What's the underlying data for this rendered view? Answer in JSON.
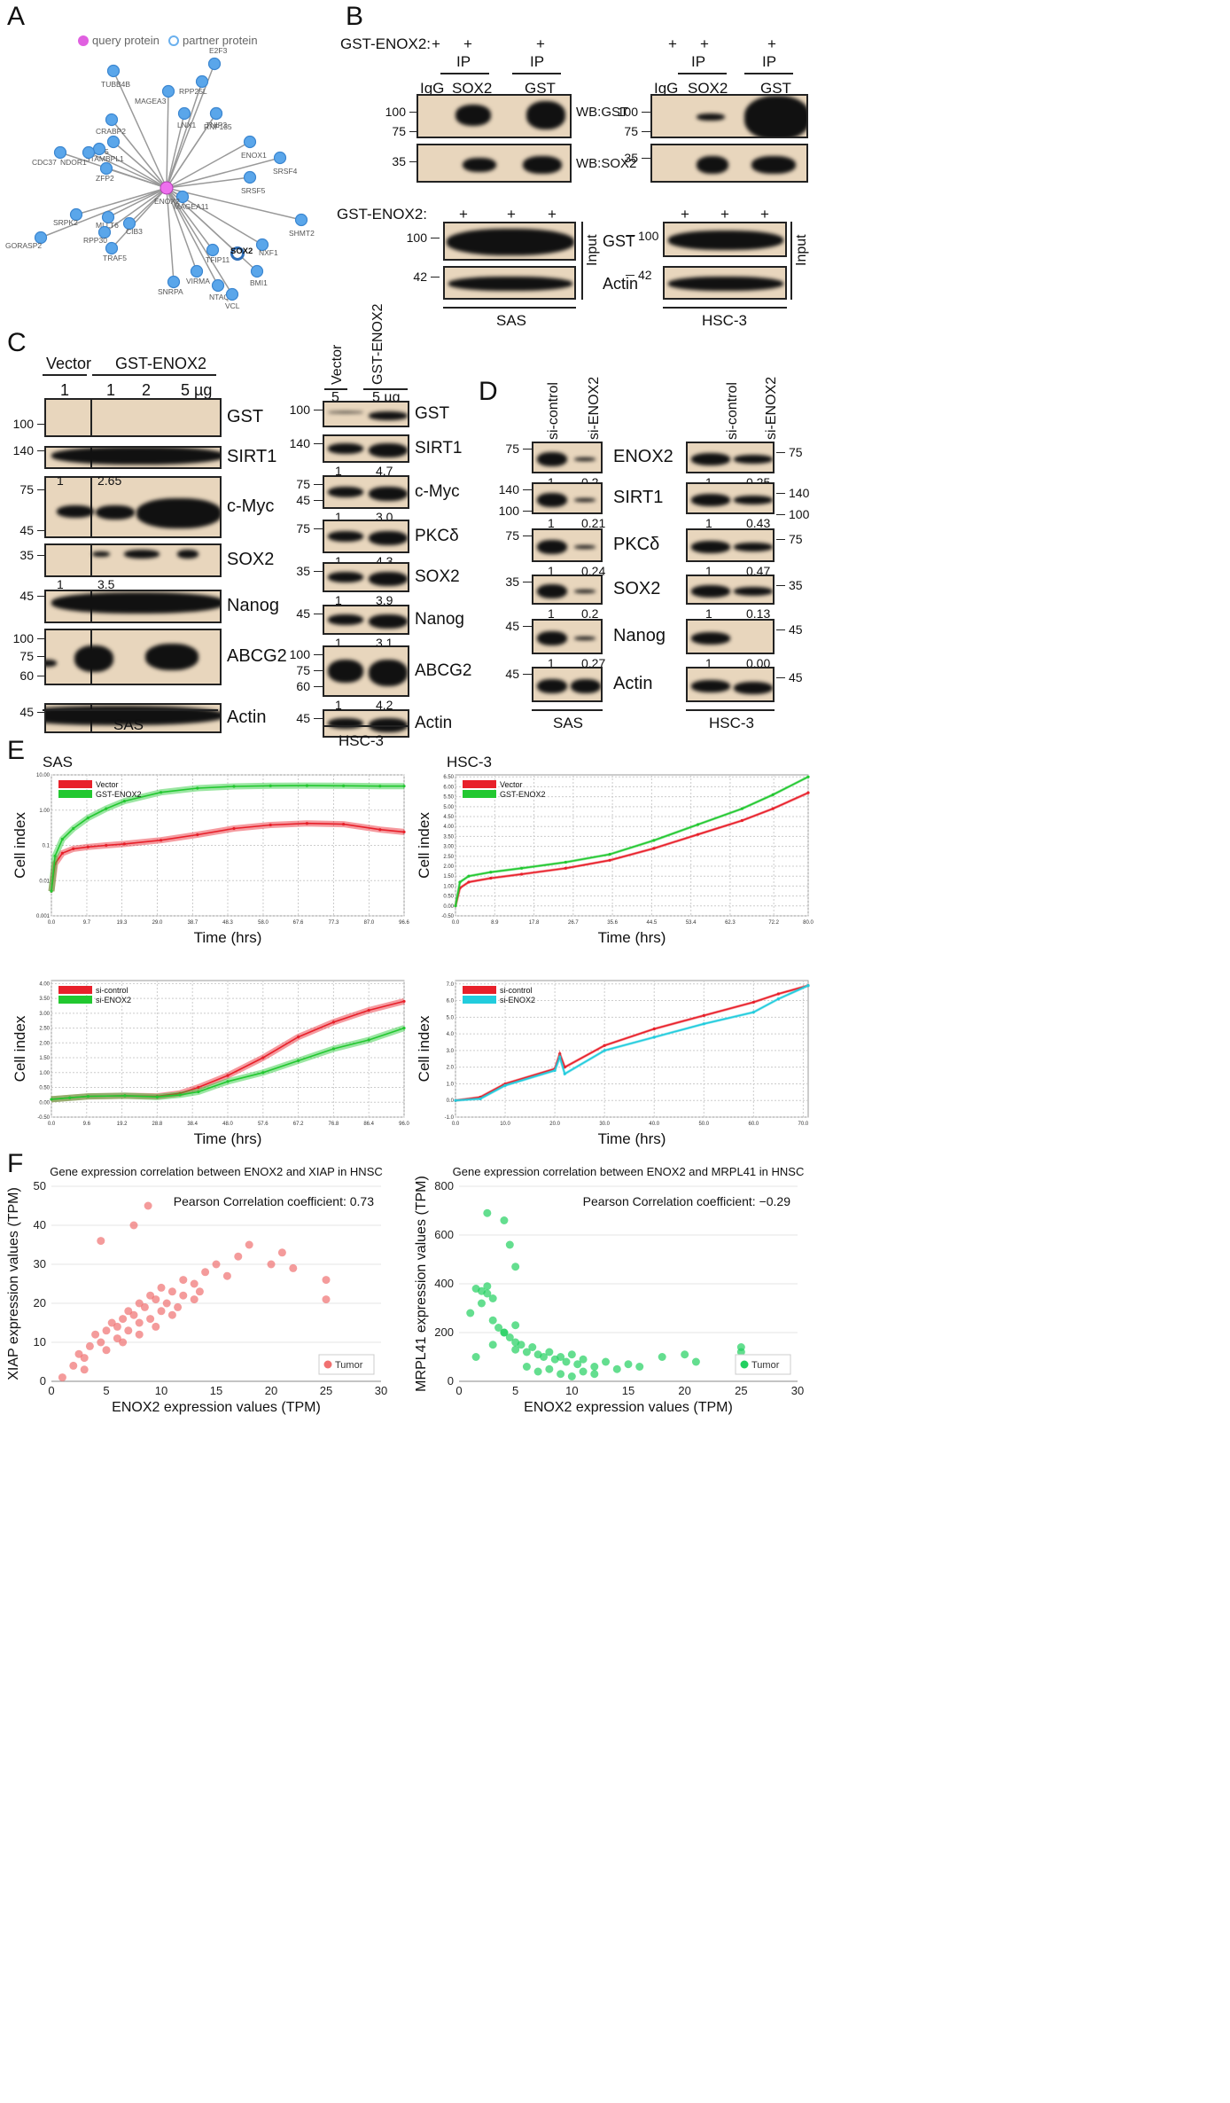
{
  "panels": {
    "a": "A",
    "b": "B",
    "c": "C",
    "d": "D",
    "e": "E",
    "f": "F"
  },
  "a": {
    "legend_query": "query protein",
    "legend_partner": "partner protein",
    "hub": "ENOX2",
    "nodes": [
      "TUBB4B",
      "E2F3",
      "RPP25L",
      "MAGEA3",
      "RNF135",
      "LNX1",
      "TNIP2",
      "CRABP2",
      "POP5",
      "STAMBPL1",
      "NDOR1",
      "CDC37",
      "ZFP2",
      "ENOX1",
      "SRSF4",
      "SRSF5",
      "MAGEA11",
      "SHMT2",
      "SRPK2",
      "MLLT6",
      "GORASP2",
      "RPP30",
      "CIB3",
      "TRAF5",
      "TFIP11",
      "SOX2",
      "NXF1",
      "BMI1",
      "VIRMA",
      "NTAQ1",
      "VCL",
      "SNRPA"
    ]
  },
  "b": {
    "gst": "GST-ENOX2:",
    "plus": "+",
    "ip": "IP",
    "igg": "IgG",
    "sox2": "SOX2",
    "gstlane": "GST",
    "wb_gst": "WB:GST",
    "wb_sox2": "WB:SOX2",
    "m100": "100",
    "m75": "75",
    "m35": "35",
    "m42": "42",
    "input": "Input",
    "gst_row": "GST",
    "actin": "Actin",
    "sas": "SAS",
    "hsc3": "HSC-3"
  },
  "c": {
    "vector": "Vector",
    "gstenox2": "GST-ENOX2",
    "lanes_left": [
      "1",
      "1",
      "2",
      "5 µg"
    ],
    "lanes_right": [
      "5",
      "5 µg"
    ],
    "rows_left": [
      "GST",
      "SIRT1",
      "c-Myc",
      "SOX2",
      "Nanog",
      "ABCG2",
      "Actin"
    ],
    "rows_right": [
      "GST",
      "SIRT1",
      "c-Myc",
      "PKCδ",
      "SOX2",
      "Nanog",
      "ABCG2",
      "Actin"
    ],
    "q_left": [
      [
        "1",
        "2.65"
      ],
      [
        "1",
        "3.5"
      ]
    ],
    "q_right": [
      [
        "1",
        "4.7"
      ],
      [
        "1",
        "3.0"
      ],
      [
        "1",
        "4.3"
      ],
      [
        "1",
        "3.9"
      ],
      [
        "1",
        "3.1"
      ],
      [
        "1",
        "4.2"
      ]
    ],
    "markers": [
      "100",
      "140",
      "75",
      "45",
      "35",
      "45",
      "100",
      "75",
      "60",
      "45",
      "100",
      "140",
      "75",
      "45",
      "75",
      "35",
      "45",
      "100",
      "75",
      "60",
      "45"
    ],
    "sas": "SAS",
    "hsc3": "HSC-3"
  },
  "d": {
    "sicontrol": "si-control",
    "sienox2": "si-ENOX2",
    "rows": [
      "ENOX2",
      "SIRT1",
      "PKCδ",
      "SOX2",
      "Nanog",
      "Actin"
    ],
    "q_left": [
      [
        "1",
        "0.2"
      ],
      [
        "1",
        "0.21"
      ],
      [
        "1",
        "0.24"
      ],
      [
        "1",
        "0.2"
      ],
      [
        "1",
        "0.27"
      ]
    ],
    "q_right": [
      [
        "1",
        "0.25"
      ],
      [
        "1",
        "0.43"
      ],
      [
        "1",
        "0.47"
      ],
      [
        "1",
        "0.13"
      ],
      [
        "1",
        "0.00"
      ]
    ],
    "markers": [
      "75",
      "140",
      "100",
      "75",
      "35",
      "45",
      "45",
      "75",
      "140",
      "100",
      "75",
      "35",
      "45",
      "45"
    ],
    "sas": "SAS",
    "hsc3": "HSC-3"
  },
  "chart_data": [
    {
      "id": "e1",
      "type": "line",
      "title": "SAS",
      "xlabel": "Time (hrs)",
      "ylabel": "Cell index",
      "legend": [
        "Vector",
        "GST-ENOX2"
      ],
      "xticks": [
        "0.0",
        "9.7",
        "19.3",
        "29.0",
        "38.7",
        "48.3",
        "58.0",
        "67.6",
        "77.3",
        "87.0",
        "96.6"
      ],
      "yticks": [
        "0.001",
        "0.01",
        "0.1",
        "1.00",
        "10.00"
      ],
      "scale": "log",
      "xlim": [
        0,
        96.6
      ],
      "ylim": [
        0.001,
        10
      ],
      "series": [
        {
          "name": "Vector",
          "color": "#e8202a",
          "x": [
            0,
            1,
            3,
            6,
            10,
            15,
            20,
            30,
            40,
            50,
            60,
            70,
            80,
            90,
            96.6
          ],
          "y": [
            0.005,
            0.03,
            0.06,
            0.08,
            0.09,
            0.1,
            0.11,
            0.14,
            0.2,
            0.3,
            0.38,
            0.42,
            0.4,
            0.28,
            0.24
          ]
        },
        {
          "name": "GST-ENOX2",
          "color": "#22c830",
          "x": [
            0,
            1,
            3,
            6,
            10,
            15,
            20,
            30,
            40,
            50,
            60,
            70,
            80,
            90,
            96.6
          ],
          "y": [
            0.005,
            0.05,
            0.15,
            0.3,
            0.6,
            1.1,
            1.8,
            3.2,
            4.2,
            4.7,
            4.9,
            4.95,
            4.9,
            4.8,
            4.8
          ]
        }
      ]
    },
    {
      "id": "e2",
      "type": "line",
      "title": "HSC-3",
      "xlabel": "Time (hrs)",
      "ylabel": "Cell index",
      "legend": [
        "Vector",
        "GST-ENOX2"
      ],
      "xticks": [
        "0.0",
        "8.9",
        "17.8",
        "26.7",
        "35.6",
        "44.5",
        "53.4",
        "62.3",
        "72.2",
        "80.0"
      ],
      "yticks": [
        "-0.50",
        "0.00",
        "0.50",
        "1.00",
        "1.50",
        "2.00",
        "2.50",
        "3.00",
        "3.50",
        "4.00",
        "4.50",
        "5.00",
        "5.50",
        "6.00",
        "6.50"
      ],
      "scale": "linear",
      "xlim": [
        0,
        80
      ],
      "ylim": [
        -0.5,
        6.6
      ],
      "series": [
        {
          "name": "Vector",
          "color": "#e8202a",
          "x": [
            0,
            1,
            3,
            8,
            15,
            25,
            35,
            45,
            55,
            65,
            72,
            80
          ],
          "y": [
            0,
            0.9,
            1.2,
            1.4,
            1.6,
            1.9,
            2.3,
            2.9,
            3.6,
            4.3,
            4.9,
            5.7
          ]
        },
        {
          "name": "GST-ENOX2",
          "color": "#22c830",
          "x": [
            0,
            1,
            3,
            8,
            15,
            25,
            35,
            45,
            55,
            65,
            72,
            80
          ],
          "y": [
            0,
            1.2,
            1.5,
            1.7,
            1.9,
            2.2,
            2.6,
            3.3,
            4.1,
            4.9,
            5.6,
            6.5
          ]
        }
      ]
    },
    {
      "id": "e3",
      "type": "line",
      "title": "",
      "xlabel": "Time (hrs)",
      "ylabel": "Cell index",
      "legend": [
        "si-control",
        "si-ENOX2"
      ],
      "xticks": [
        "0.0",
        "9.6",
        "19.2",
        "28.8",
        "38.4",
        "48.0",
        "57.6",
        "67.2",
        "76.8",
        "86.4",
        "96.0"
      ],
      "yticks": [
        "-0.50",
        "0.00",
        "0.50",
        "1.00",
        "1.50",
        "2.00",
        "2.50",
        "3.00",
        "3.50",
        "4.00"
      ],
      "scale": "linear",
      "xlim": [
        0,
        96
      ],
      "ylim": [
        -0.5,
        4.1
      ],
      "series": [
        {
          "name": "si-control",
          "color": "#e8202a",
          "x": [
            0,
            5,
            10,
            20,
            28.8,
            35,
            40,
            48,
            57.6,
            67.2,
            76.8,
            86.4,
            96
          ],
          "y": [
            0.1,
            0.15,
            0.2,
            0.22,
            0.2,
            0.3,
            0.5,
            0.9,
            1.5,
            2.2,
            2.7,
            3.1,
            3.4
          ]
        },
        {
          "name": "si-ENOX2",
          "color": "#22c830",
          "x": [
            0,
            5,
            10,
            20,
            28.8,
            35,
            40,
            48,
            57.6,
            67.2,
            76.8,
            86.4,
            96
          ],
          "y": [
            0.1,
            0.15,
            0.2,
            0.22,
            0.18,
            0.25,
            0.35,
            0.7,
            1.0,
            1.4,
            1.8,
            2.1,
            2.5
          ]
        }
      ]
    },
    {
      "id": "e4",
      "type": "line",
      "title": "",
      "xlabel": "Time (hrs)",
      "ylabel": "Cell index",
      "legend": [
        "si-control",
        "si-ENOX2"
      ],
      "xticks": [
        "0.0",
        "10.0",
        "20.0",
        "30.0",
        "40.0",
        "50.0",
        "60.0",
        "70.0"
      ],
      "yticks": [
        "-1.0",
        "0.0",
        "1.0",
        "2.0",
        "3.0",
        "4.0",
        "5.0",
        "6.0",
        "7.0"
      ],
      "scale": "linear",
      "xlim": [
        0,
        71
      ],
      "ylim": [
        -1,
        7.2
      ],
      "series": [
        {
          "name": "si-control",
          "color": "#e8202a",
          "x": [
            0,
            5,
            10,
            20,
            21,
            22,
            30,
            40,
            50,
            60,
            65,
            71
          ],
          "y": [
            0,
            0.2,
            1.0,
            1.9,
            2.8,
            2.0,
            3.3,
            4.3,
            5.1,
            5.9,
            6.4,
            6.9
          ]
        },
        {
          "name": "si-ENOX2",
          "color": "#22ccdd",
          "x": [
            0,
            5,
            10,
            20,
            21,
            22,
            30,
            40,
            50,
            60,
            65,
            71
          ],
          "y": [
            0,
            0.1,
            0.9,
            1.8,
            2.6,
            1.6,
            3.0,
            3.8,
            4.6,
            5.3,
            6.1,
            6.9
          ]
        }
      ]
    },
    {
      "id": "f1",
      "type": "scatter",
      "title": "Gene expression correlation between ENOX2 and XIAP in HNSC",
      "annotation": "Pearson Correlation coefficient: 0.73",
      "xlabel": "ENOX2 expression values (TPM)",
      "ylabel": "XIAP expression values (TPM)",
      "legend": [
        "Tumor"
      ],
      "color": "#f07070",
      "xticks": [
        "0",
        "5",
        "10",
        "15",
        "20",
        "25",
        "30"
      ],
      "yticks": [
        "0",
        "10",
        "20",
        "30",
        "40",
        "50"
      ],
      "xlim": [
        0,
        30
      ],
      "ylim": [
        0,
        50
      ],
      "x": [
        1,
        2,
        2.5,
        3,
        3.5,
        4,
        4.5,
        5,
        5.5,
        6,
        6,
        6.5,
        7,
        7,
        7.5,
        8,
        8,
        8.5,
        9,
        9,
        9.5,
        10,
        10,
        10.5,
        11,
        11,
        12,
        12,
        13,
        13,
        14,
        15,
        16,
        17,
        18,
        20,
        21,
        22,
        25,
        25,
        4.5,
        7.5,
        8.8,
        3,
        5,
        6.5,
        8,
        9.5,
        11.5,
        13.5
      ],
      "y": [
        1,
        4,
        7,
        6,
        9,
        12,
        10,
        13,
        15,
        11,
        14,
        16,
        13,
        18,
        17,
        15,
        20,
        19,
        16,
        22,
        21,
        18,
        24,
        20,
        23,
        17,
        22,
        26,
        21,
        25,
        28,
        30,
        27,
        32,
        35,
        30,
        33,
        29,
        26,
        21,
        36,
        40,
        45,
        3,
        8,
        10,
        12,
        14,
        19,
        23
      ]
    },
    {
      "id": "f2",
      "type": "scatter",
      "title": "Gene expression correlation between ENOX2 and MRPL41 in HNSC",
      "annotation": "Pearson Correlation coefficient: −0.29",
      "xlabel": "ENOX2 expression values (TPM)",
      "ylabel": "MRPL41 expression values (TPM)",
      "legend": [
        "Tumor"
      ],
      "color": "#22d060",
      "xticks": [
        "0",
        "5",
        "10",
        "15",
        "20",
        "25",
        "30"
      ],
      "yticks": [
        "0",
        "200",
        "400",
        "600",
        "800"
      ],
      "xlim": [
        0,
        30
      ],
      "ylim": [
        0,
        800
      ],
      "x": [
        1,
        1.5,
        2,
        2.5,
        3,
        3.5,
        4,
        4.5,
        5,
        5,
        5.5,
        6,
        6.5,
        7,
        7.5,
        8,
        8.5,
        9,
        9.5,
        10,
        10.5,
        11,
        12,
        13,
        14,
        15,
        16,
        18,
        20,
        21,
        25,
        25,
        2.5,
        4,
        4.5,
        5,
        2,
        2.5,
        3,
        1.5,
        6,
        7,
        8,
        9,
        10,
        11,
        12,
        3,
        4,
        5
      ],
      "y": [
        280,
        380,
        320,
        360,
        250,
        220,
        200,
        180,
        160,
        130,
        150,
        120,
        140,
        110,
        100,
        120,
        90,
        100,
        80,
        110,
        70,
        90,
        60,
        80,
        50,
        70,
        60,
        100,
        110,
        80,
        140,
        120,
        690,
        660,
        560,
        470,
        370,
        390,
        340,
        100,
        60,
        40,
        50,
        30,
        20,
        40,
        30,
        150,
        200,
        230
      ]
    }
  ]
}
